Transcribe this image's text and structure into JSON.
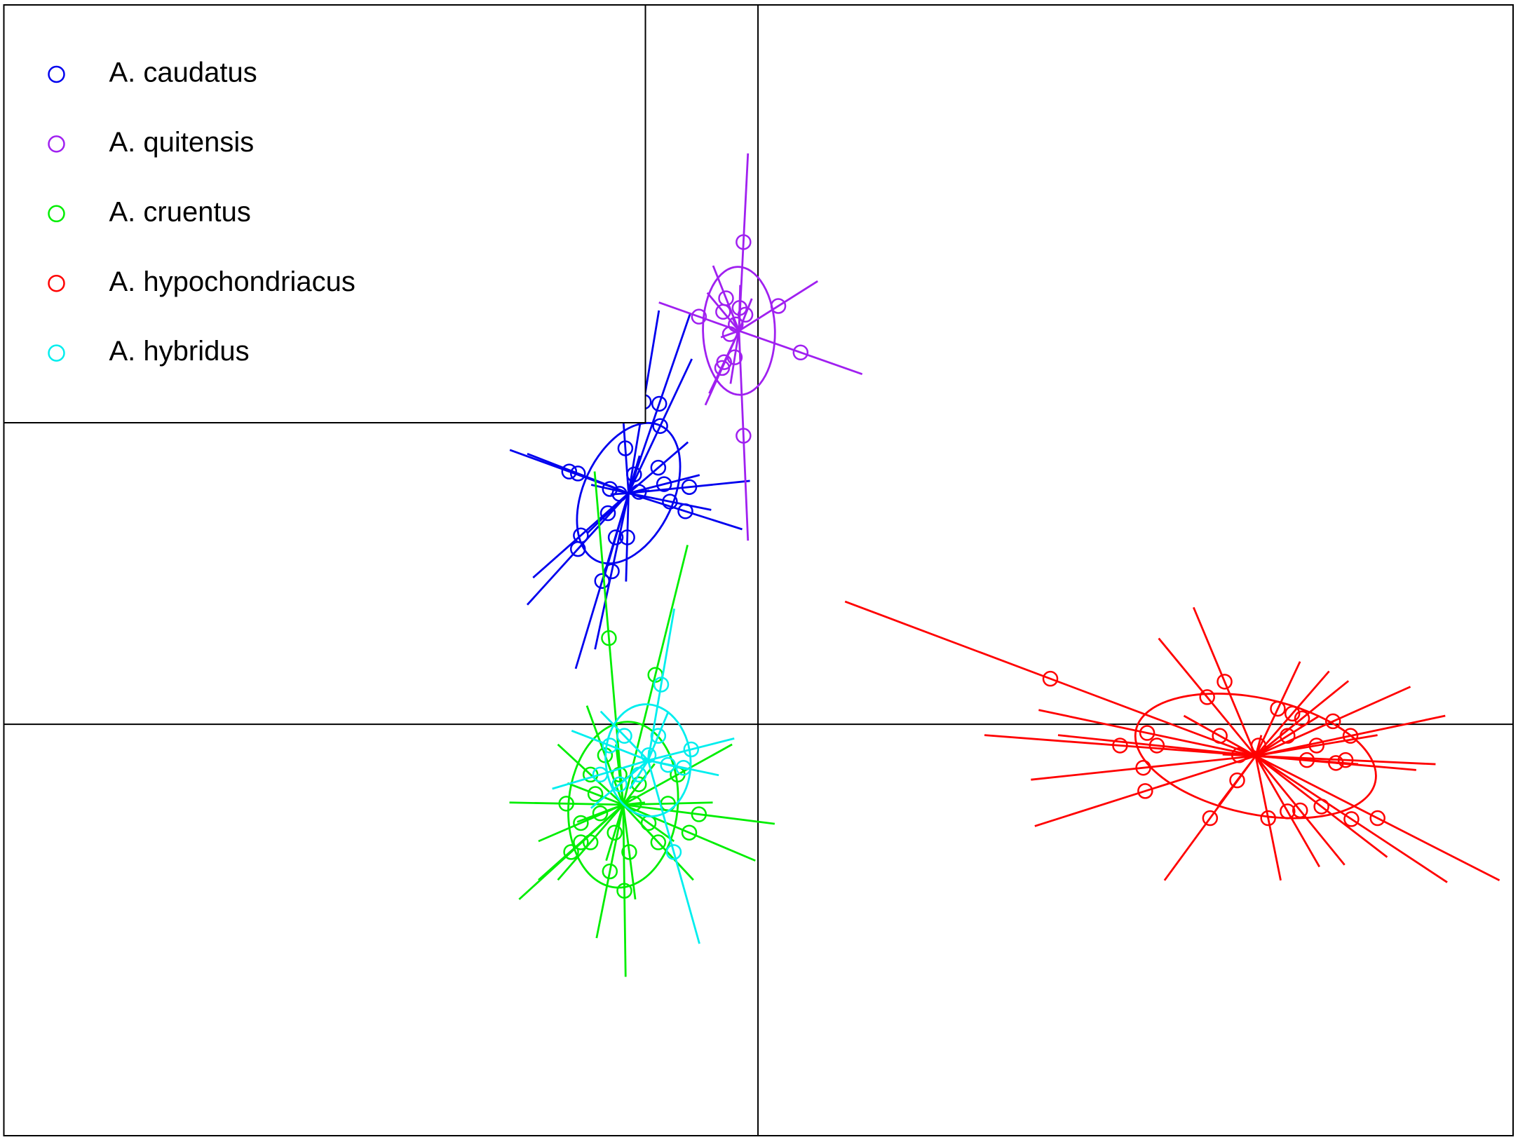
{
  "chart_data": {
    "type": "scatter",
    "legend": "top-left",
    "axes_cross": true,
    "xlim": [
      -7.79,
      7.8
    ],
    "ylim": [
      -4.25,
      7.43
    ],
    "series": [
      {
        "name": "A. caudatus",
        "color": "#0000ee",
        "x": [
          -1.95,
          -1.86,
          -1.37,
          -1.18,
          -1.02,
          -1.01,
          -1.03,
          -0.97,
          -0.71,
          -0.75,
          -0.91,
          -1.55,
          -1.47,
          -1.35,
          -1.83,
          -1.86,
          -1.61,
          -1.51,
          -1.28,
          -1.23,
          -1.43,
          -1.53
        ],
        "y": [
          2.61,
          2.59,
          2.85,
          3.33,
          3.31,
          3.08,
          2.65,
          2.48,
          2.45,
          2.2,
          2.3,
          2.18,
          1.93,
          1.93,
          1.95,
          1.81,
          1.48,
          1.58,
          2.58,
          2.4,
          2.38,
          2.43
        ]
      },
      {
        "name": "A. quitensis",
        "color": "#a020f0",
        "x": [
          -0.15,
          -0.33,
          -0.19,
          -0.36,
          -0.13,
          0.21,
          -0.61,
          0.44,
          -0.24,
          -0.35,
          -0.37,
          -0.15,
          -0.23,
          -0.29
        ],
        "y": [
          4.98,
          4.4,
          4.3,
          4.26,
          4.23,
          4.32,
          4.21,
          3.84,
          3.79,
          3.74,
          3.68,
          2.98,
          4.13,
          4.03
        ]
      },
      {
        "name": "A. cruentus",
        "color": "#00ee00",
        "x": [
          -1.54,
          -1.06,
          -1.98,
          -1.83,
          -1.73,
          -1.68,
          -1.43,
          -1.23,
          -0.93,
          -0.71,
          -0.61,
          -1.33,
          -1.53,
          -1.83,
          -1.13,
          -1.38,
          -1.63,
          -1.28,
          -1.03,
          -1.48,
          -1.93,
          -0.83,
          -1.58,
          -1.73
        ],
        "y": [
          0.89,
          0.51,
          -0.82,
          -1.02,
          -1.22,
          -0.72,
          -0.52,
          -0.62,
          -0.82,
          -1.12,
          -0.93,
          -1.32,
          -1.52,
          -1.22,
          -1.02,
          -1.72,
          -0.92,
          -0.82,
          -1.22,
          -1.12,
          -1.32,
          -0.52,
          -0.32,
          -0.52
        ]
      },
      {
        "name": "A. hypochondriacus",
        "color": "#ff0000",
        "x": [
          3.02,
          4.82,
          4.64,
          3.74,
          4.12,
          4.02,
          3.98,
          4.0,
          4.67,
          5.27,
          5.47,
          5.6,
          5.82,
          6.13,
          6.4,
          5.97,
          6.12,
          5.94,
          5.62,
          5.37,
          5.52,
          4.95,
          5.67,
          6.07,
          4.77,
          5.77,
          5.47,
          4.97,
          5.17
        ],
        "y": [
          0.47,
          0.44,
          0.28,
          -0.22,
          -0.22,
          -0.09,
          -0.45,
          -0.69,
          -0.97,
          -0.97,
          -0.9,
          -0.89,
          -0.85,
          -0.98,
          -0.97,
          -0.4,
          -0.12,
          0.03,
          0.06,
          0.16,
          0.11,
          -0.58,
          -0.37,
          -0.37,
          -0.12,
          -0.22,
          -0.12,
          -0.32,
          -0.22
        ]
      },
      {
        "name": "A. hybridus",
        "color": "#00eeee",
        "x": [
          -1.0,
          -0.69,
          -0.77,
          -1.13,
          -1.38,
          -1.53,
          -0.87,
          -1.23,
          -1.43,
          -0.93,
          -1.63,
          -1.03
        ],
        "y": [
          0.41,
          -0.26,
          -0.45,
          -0.32,
          -0.12,
          -0.22,
          -1.32,
          -0.52,
          -0.62,
          -0.42,
          -0.52,
          -0.12
        ]
      }
    ]
  }
}
